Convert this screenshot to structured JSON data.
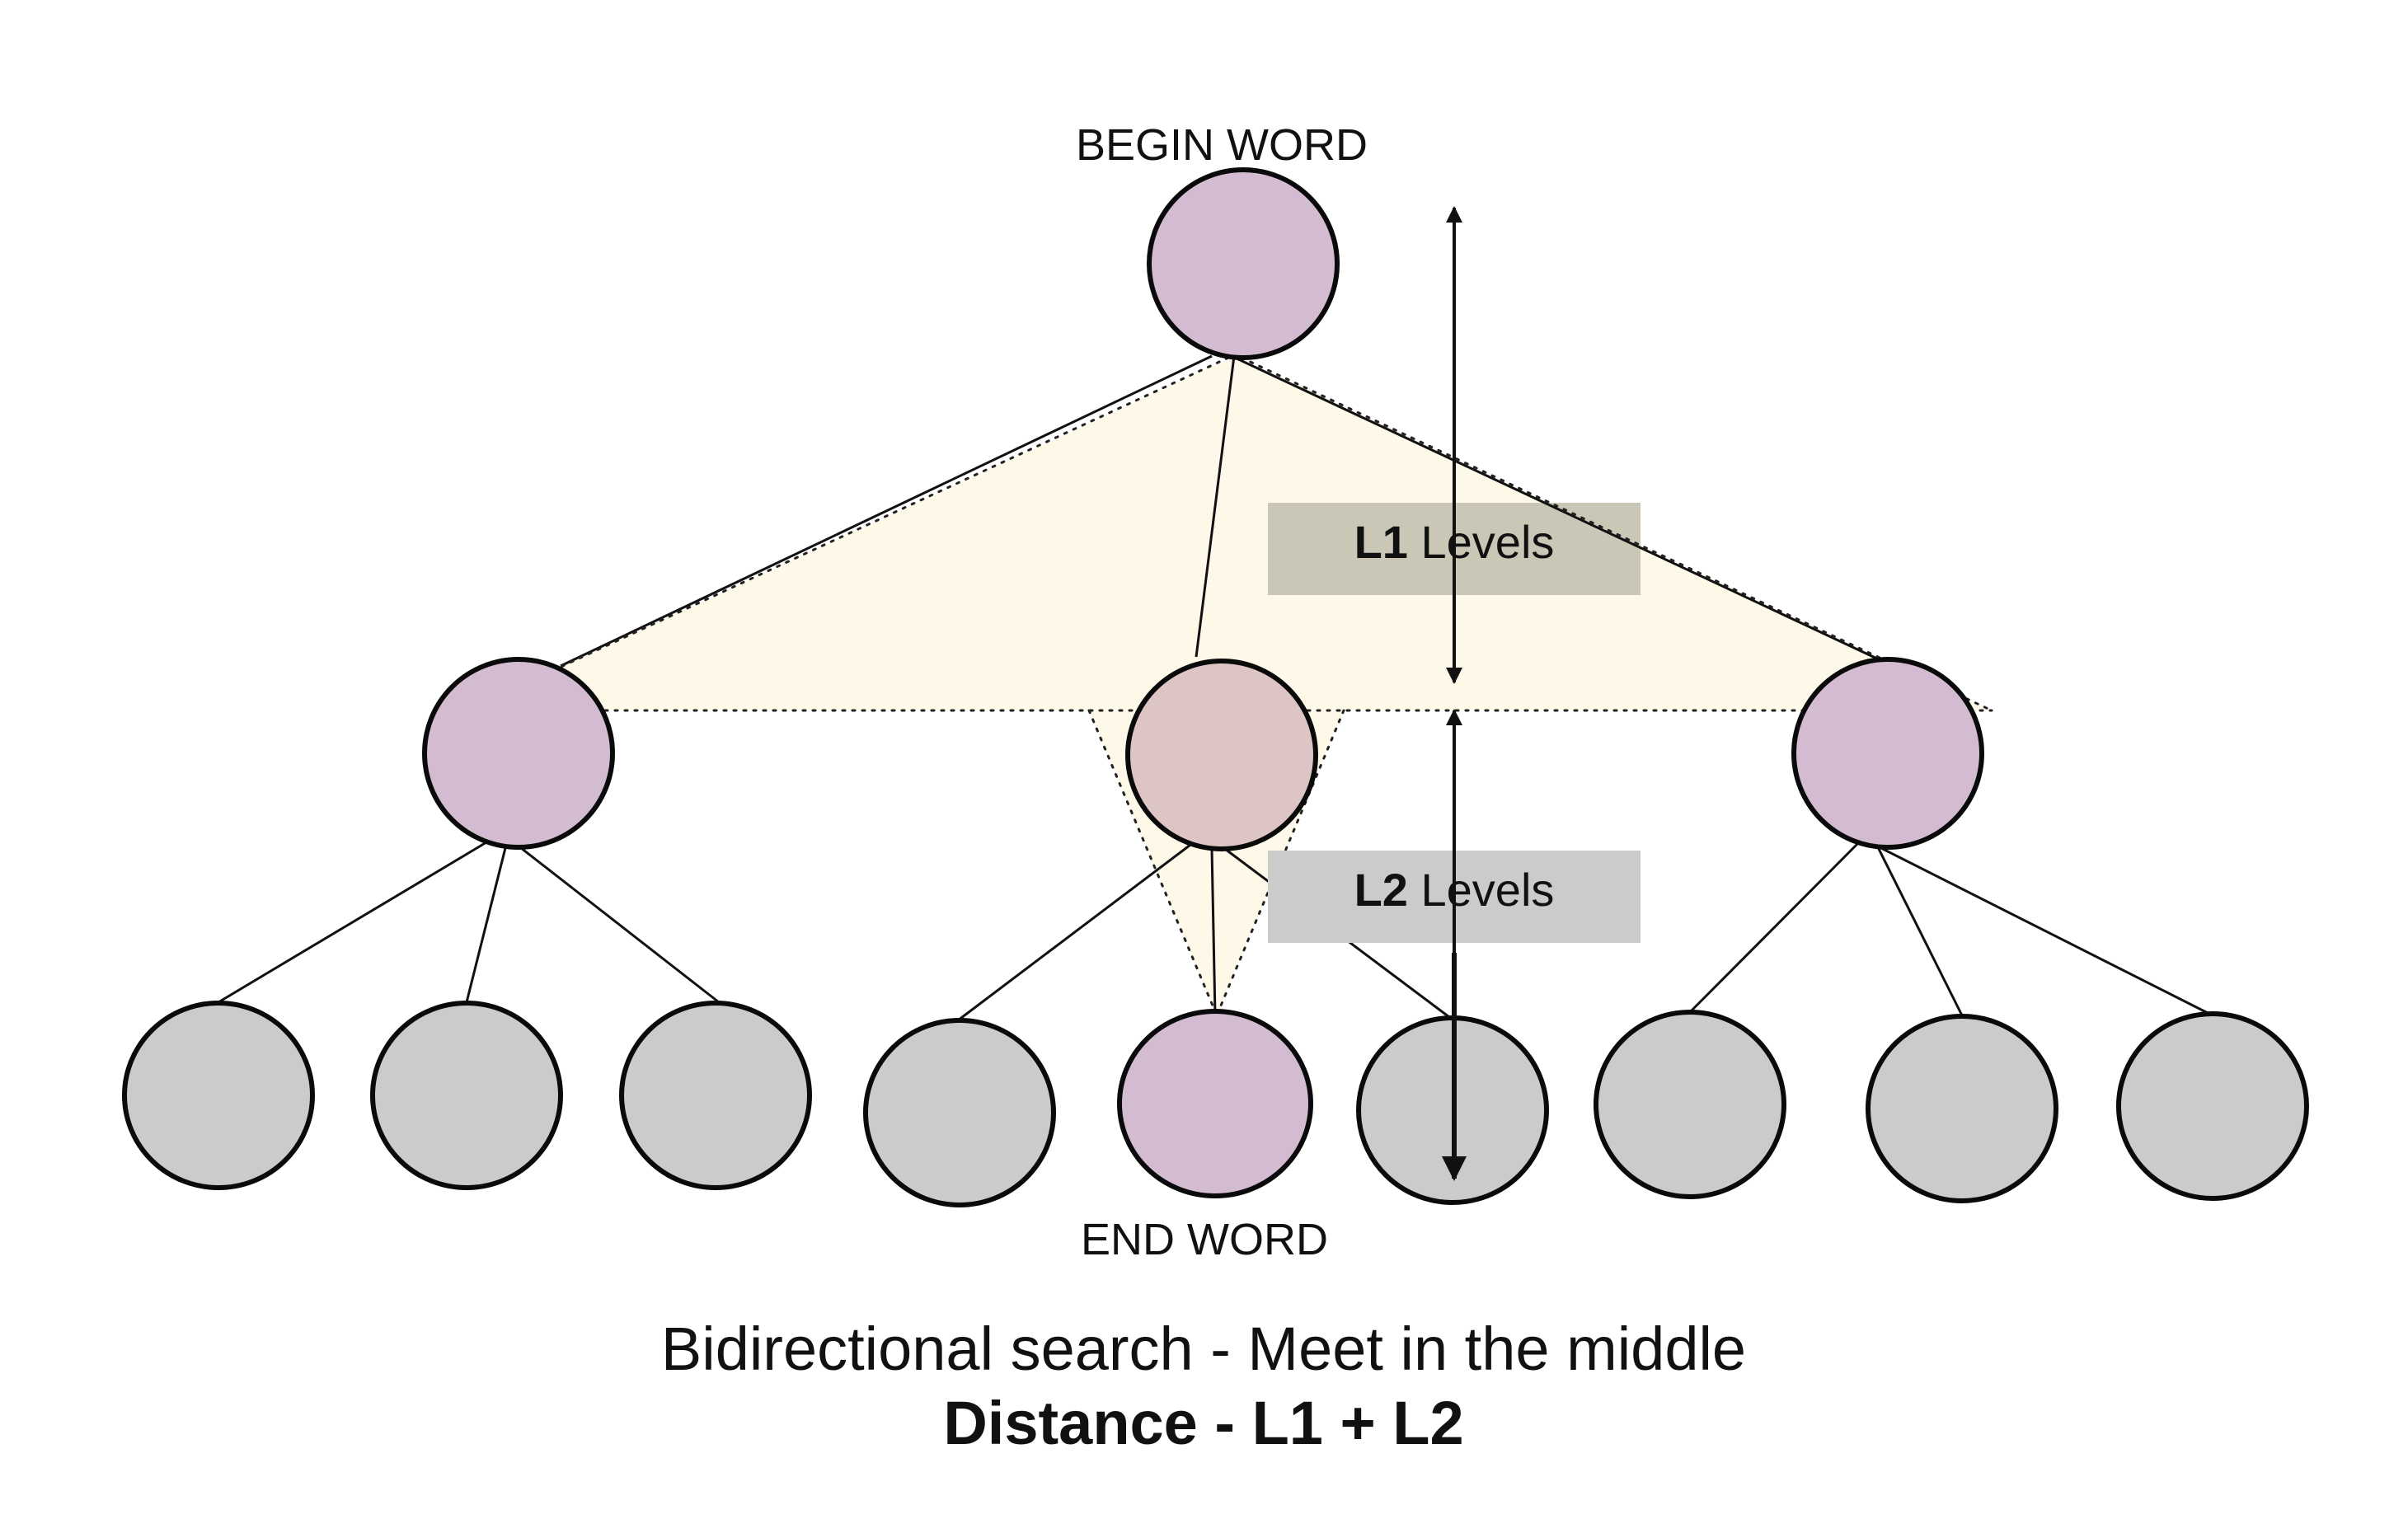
{
  "labels": {
    "begin": "BEGIN WORD",
    "end": "END WORD"
  },
  "levels": {
    "l1": {
      "id": "L1",
      "text": " Levels"
    },
    "l2": {
      "id": "L2",
      "text": " Levels"
    }
  },
  "caption": {
    "line1": "Bidirectional search - Meet in the middle",
    "line2": "Distance -  L1 + L2"
  },
  "colors": {
    "highlight_node": "#d3bcd2",
    "meet_node": "#dcc5c4",
    "plain_node": "#cbcbcb",
    "search_region": "#fdf8e7",
    "l1_box": "#cac7b7",
    "l2_box": "#cbcbcb"
  }
}
